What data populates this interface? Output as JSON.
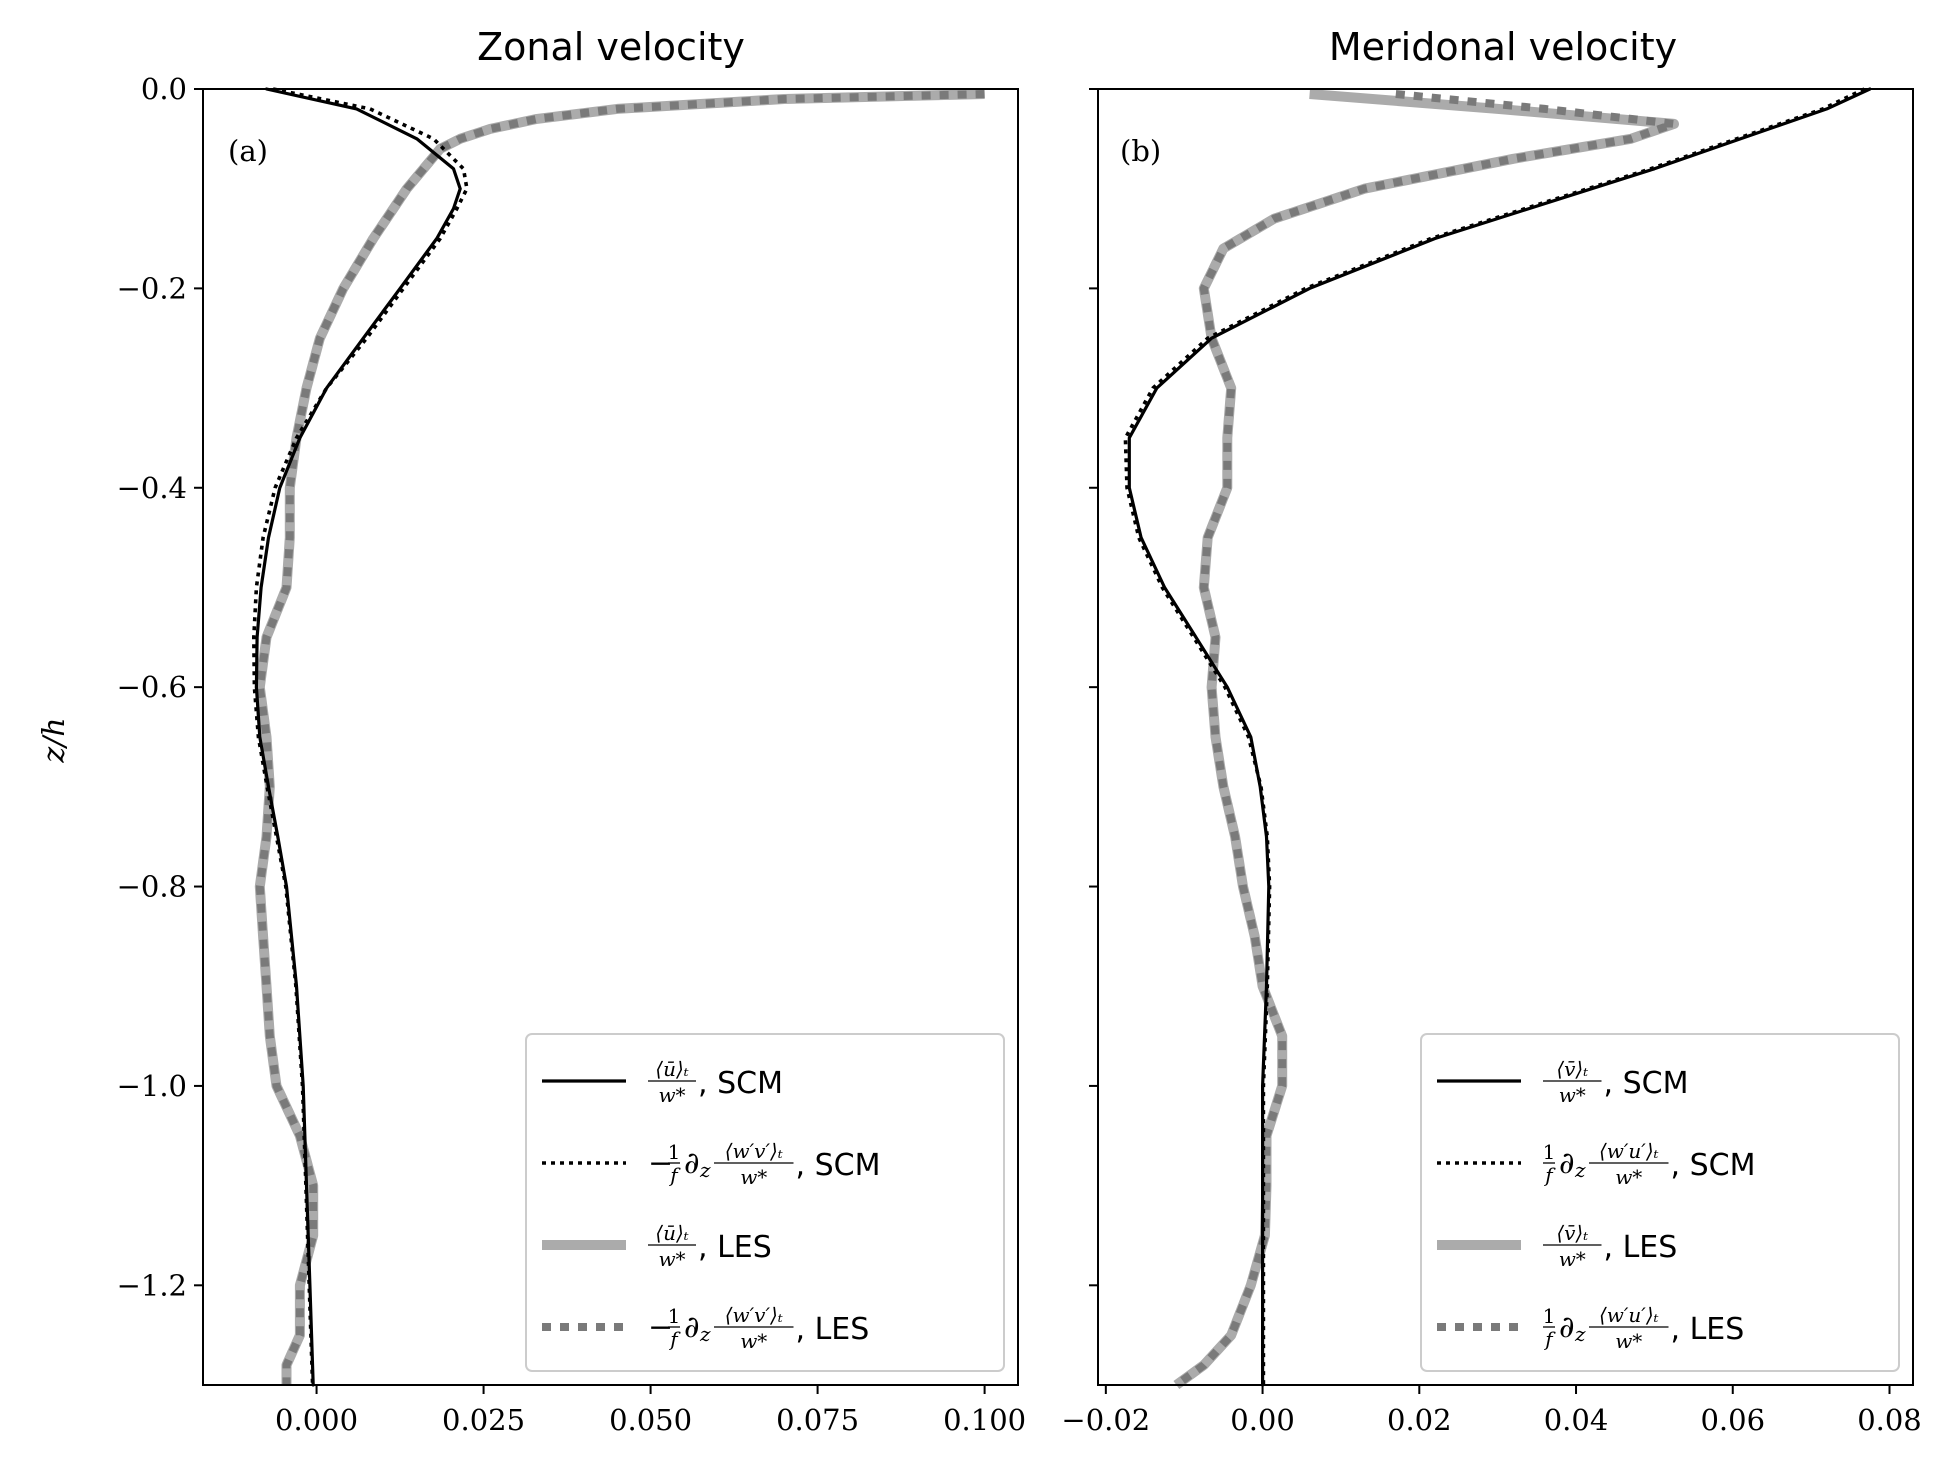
{
  "chart_data": [
    {
      "type": "line",
      "title": "Zonal velocity",
      "panel_label": "(a)",
      "ylabel": "z/h",
      "xlim": [
        -0.017,
        0.105
      ],
      "ylim": [
        -1.3,
        0.0
      ],
      "xticks": [
        "0.000",
        "0.025",
        "0.050",
        "0.075",
        "0.100"
      ],
      "yticks": [
        "0.0",
        "−0.2",
        "−0.4",
        "−0.6",
        "−0.8",
        "−1.0",
        "−1.2"
      ],
      "legend_position": "lower right",
      "legend": [
        {
          "math": "⟨ū⟩ₜ / w*",
          "suffix": ", SCM",
          "style": "solid-black"
        },
        {
          "math": "−(1/f) ∂z ⟨w′v′⟩ₜ / w*",
          "suffix": ", SCM",
          "style": "dotted-black"
        },
        {
          "math": "⟨ū⟩ₜ / w*",
          "suffix": ", LES",
          "style": "solid-grey"
        },
        {
          "math": "−(1/f) ∂z ⟨w′v′⟩ₜ / w*",
          "suffix": ", LES",
          "style": "dotted-grey"
        }
      ],
      "series": [
        {
          "y": [
            0.0,
            -0.02,
            -0.05,
            -0.08,
            -0.1,
            -0.12,
            -0.15,
            -0.2,
            -0.25,
            -0.3,
            -0.35,
            -0.4,
            -0.45,
            -0.5,
            -0.55,
            -0.6,
            -0.65,
            -0.7,
            -0.75,
            -0.8,
            -0.9,
            -1.0,
            -1.1,
            -1.2,
            -1.3
          ],
          "x": [
            -0.0075,
            0.006,
            0.015,
            0.0205,
            0.0215,
            0.0205,
            0.018,
            0.0125,
            0.007,
            0.0015,
            -0.0025,
            -0.0055,
            -0.0072,
            -0.0083,
            -0.0089,
            -0.009,
            -0.0085,
            -0.0072,
            -0.0058,
            -0.0045,
            -0.003,
            -0.002,
            -0.0015,
            -0.001,
            -0.0005
          ]
        },
        {
          "y": [
            0.0,
            -0.02,
            -0.05,
            -0.08,
            -0.1,
            -0.12,
            -0.15,
            -0.2,
            -0.25,
            -0.3,
            -0.35,
            -0.4,
            -0.45,
            -0.5,
            -0.55,
            -0.6,
            -0.65,
            -0.7,
            -0.75,
            -0.8,
            -0.9,
            -1.0,
            -1.1,
            -1.2,
            -1.3
          ],
          "x": [
            -0.0065,
            0.008,
            0.0175,
            0.022,
            0.0225,
            0.021,
            0.0185,
            0.013,
            0.0075,
            0.0015,
            -0.003,
            -0.0062,
            -0.008,
            -0.009,
            -0.0094,
            -0.0093,
            -0.0087,
            -0.0074,
            -0.006,
            -0.0046,
            -0.0031,
            -0.0021,
            -0.0016,
            -0.0011,
            -0.0006
          ]
        },
        {
          "y": [
            -0.005,
            -0.01,
            -0.02,
            -0.03,
            -0.04,
            -0.05,
            -0.06,
            -0.08,
            -0.1,
            -0.15,
            -0.2,
            -0.25,
            -0.3,
            -0.35,
            -0.4,
            -0.45,
            -0.5,
            -0.55,
            -0.6,
            -0.65,
            -0.7,
            -0.75,
            -0.8,
            -0.85,
            -0.9,
            -0.95,
            -1.0,
            -1.05,
            -1.1,
            -1.15,
            -1.2,
            -1.25,
            -1.28,
            -1.3
          ],
          "x": [
            0.1,
            0.07,
            0.045,
            0.033,
            0.026,
            0.0215,
            0.0185,
            0.016,
            0.0135,
            0.0085,
            0.004,
            0.0005,
            -0.0015,
            -0.003,
            -0.004,
            -0.004,
            -0.0045,
            -0.0075,
            -0.0085,
            -0.0075,
            -0.007,
            -0.0075,
            -0.0085,
            -0.008,
            -0.0075,
            -0.007,
            -0.006,
            -0.0025,
            -0.0005,
            -0.0005,
            -0.0025,
            -0.0025,
            -0.0045,
            -0.0045
          ]
        },
        {
          "y": [
            -0.005,
            -0.01,
            -0.02,
            -0.03,
            -0.04,
            -0.05,
            -0.06,
            -0.08,
            -0.1,
            -0.15,
            -0.2,
            -0.25,
            -0.3,
            -0.35,
            -0.4,
            -0.45,
            -0.5,
            -0.55,
            -0.6,
            -0.65,
            -0.7,
            -0.75,
            -0.8,
            -0.85,
            -0.9,
            -0.95,
            -1.0,
            -1.05,
            -1.1,
            -1.15,
            -1.2,
            -1.25,
            -1.28,
            -1.3
          ],
          "x": [
            0.1,
            0.07,
            0.045,
            0.033,
            0.026,
            0.0215,
            0.0185,
            0.016,
            0.0135,
            0.0085,
            0.004,
            0.0005,
            -0.0015,
            -0.003,
            -0.004,
            -0.004,
            -0.0045,
            -0.0075,
            -0.0085,
            -0.0075,
            -0.007,
            -0.0075,
            -0.0085,
            -0.008,
            -0.0075,
            -0.007,
            -0.006,
            -0.0025,
            -0.0005,
            -0.0005,
            -0.0025,
            -0.0025,
            -0.0045,
            -0.0045
          ]
        }
      ]
    },
    {
      "type": "line",
      "title": "Meridonal velocity",
      "panel_label": "(b)",
      "xlim": [
        -0.021,
        0.083
      ],
      "ylim": [
        -1.3,
        0.0
      ],
      "xticks": [
        "−0.02",
        "0.00",
        "0.02",
        "0.04",
        "0.06",
        "0.08"
      ],
      "legend_position": "lower right",
      "legend": [
        {
          "math": "⟨v̄⟩ₜ / w*",
          "suffix": ", SCM",
          "style": "solid-black"
        },
        {
          "math": "(1/f) ∂z ⟨w′u′⟩ₜ / w*",
          "suffix": ", SCM",
          "style": "dotted-black"
        },
        {
          "math": "⟨v̄⟩ₜ / w*",
          "suffix": ", LES",
          "style": "solid-grey"
        },
        {
          "math": "(1/f) ∂z ⟨w′u′⟩ₜ / w*",
          "suffix": ", LES",
          "style": "dotted-grey"
        }
      ],
      "series": [
        {
          "y": [
            0.0,
            -0.02,
            -0.05,
            -0.08,
            -0.1,
            -0.12,
            -0.15,
            -0.2,
            -0.25,
            -0.3,
            -0.35,
            -0.4,
            -0.45,
            -0.5,
            -0.55,
            -0.6,
            -0.65,
            -0.7,
            -0.75,
            -0.8,
            -0.9,
            -1.0,
            -1.1,
            -1.2,
            -1.3
          ],
          "x": [
            0.0775,
            0.072,
            0.061,
            0.05,
            0.042,
            0.034,
            0.022,
            0.006,
            -0.0065,
            -0.0135,
            -0.017,
            -0.017,
            -0.0155,
            -0.0125,
            -0.0085,
            -0.0045,
            -0.0015,
            -0.0003,
            0.0005,
            0.0008,
            0.0005,
            0.0,
            0.0,
            0.0,
            0.0
          ]
        },
        {
          "y": [
            0.0,
            -0.02,
            -0.05,
            -0.08,
            -0.1,
            -0.12,
            -0.15,
            -0.2,
            -0.25,
            -0.3,
            -0.35,
            -0.4,
            -0.45,
            -0.5,
            -0.55,
            -0.6,
            -0.65,
            -0.7,
            -0.75,
            -0.8,
            -0.9,
            -1.0,
            -1.1,
            -1.2,
            -1.3
          ],
          "x": [
            0.0768,
            0.0715,
            0.0605,
            0.0495,
            0.0415,
            0.0335,
            0.0215,
            0.0055,
            -0.007,
            -0.014,
            -0.0175,
            -0.0173,
            -0.0158,
            -0.0128,
            -0.0088,
            -0.0048,
            -0.0018,
            -0.0002,
            0.0006,
            0.0009,
            0.0006,
            0.0001,
            0.0001,
            0.0001,
            0.0001
          ]
        },
        {
          "y": [
            -0.005,
            -0.02,
            -0.035,
            -0.05,
            -0.07,
            -0.1,
            -0.13,
            -0.16,
            -0.2,
            -0.25,
            -0.3,
            -0.35,
            -0.4,
            -0.45,
            -0.5,
            -0.55,
            -0.6,
            -0.65,
            -0.7,
            -0.75,
            -0.8,
            -0.85,
            -0.9,
            -0.95,
            -1.0,
            -1.05,
            -1.1,
            -1.15,
            -1.2,
            -1.25,
            -1.28,
            -1.3
          ],
          "x": [
            0.006,
            0.03,
            0.0525,
            0.047,
            0.032,
            0.013,
            0.0015,
            -0.005,
            -0.0075,
            -0.0065,
            -0.004,
            -0.0045,
            -0.0045,
            -0.007,
            -0.0075,
            -0.006,
            -0.0065,
            -0.006,
            -0.005,
            -0.0035,
            -0.0025,
            -0.001,
            0.0,
            0.0025,
            0.0025,
            0.0005,
            0.0005,
            0.0003,
            -0.0015,
            -0.004,
            -0.0075,
            -0.011
          ]
        },
        {
          "y": [
            -0.005,
            -0.02,
            -0.035,
            -0.05,
            -0.07,
            -0.1,
            -0.13,
            -0.16,
            -0.2,
            -0.25,
            -0.3,
            -0.35,
            -0.4,
            -0.45,
            -0.5,
            -0.55,
            -0.6,
            -0.65,
            -0.7,
            -0.75,
            -0.8,
            -0.85,
            -0.9,
            -0.95,
            -1.0,
            -1.05,
            -1.1,
            -1.15,
            -1.2,
            -1.25,
            -1.28,
            -1.3
          ],
          "x": [
            0.017,
            0.036,
            0.0525,
            0.047,
            0.032,
            0.013,
            0.0015,
            -0.005,
            -0.0075,
            -0.0065,
            -0.004,
            -0.0045,
            -0.0045,
            -0.007,
            -0.0075,
            -0.006,
            -0.0065,
            -0.006,
            -0.005,
            -0.0035,
            -0.0025,
            -0.001,
            0.0,
            0.0025,
            0.0025,
            0.0005,
            0.0005,
            0.0003,
            -0.0015,
            -0.004,
            -0.0075,
            -0.011
          ]
        }
      ]
    }
  ],
  "colors": {
    "scm": "#000000",
    "les_solid": "#ababab",
    "les_dotted": "#7a7a7a",
    "legend_border": "#cccccc"
  }
}
